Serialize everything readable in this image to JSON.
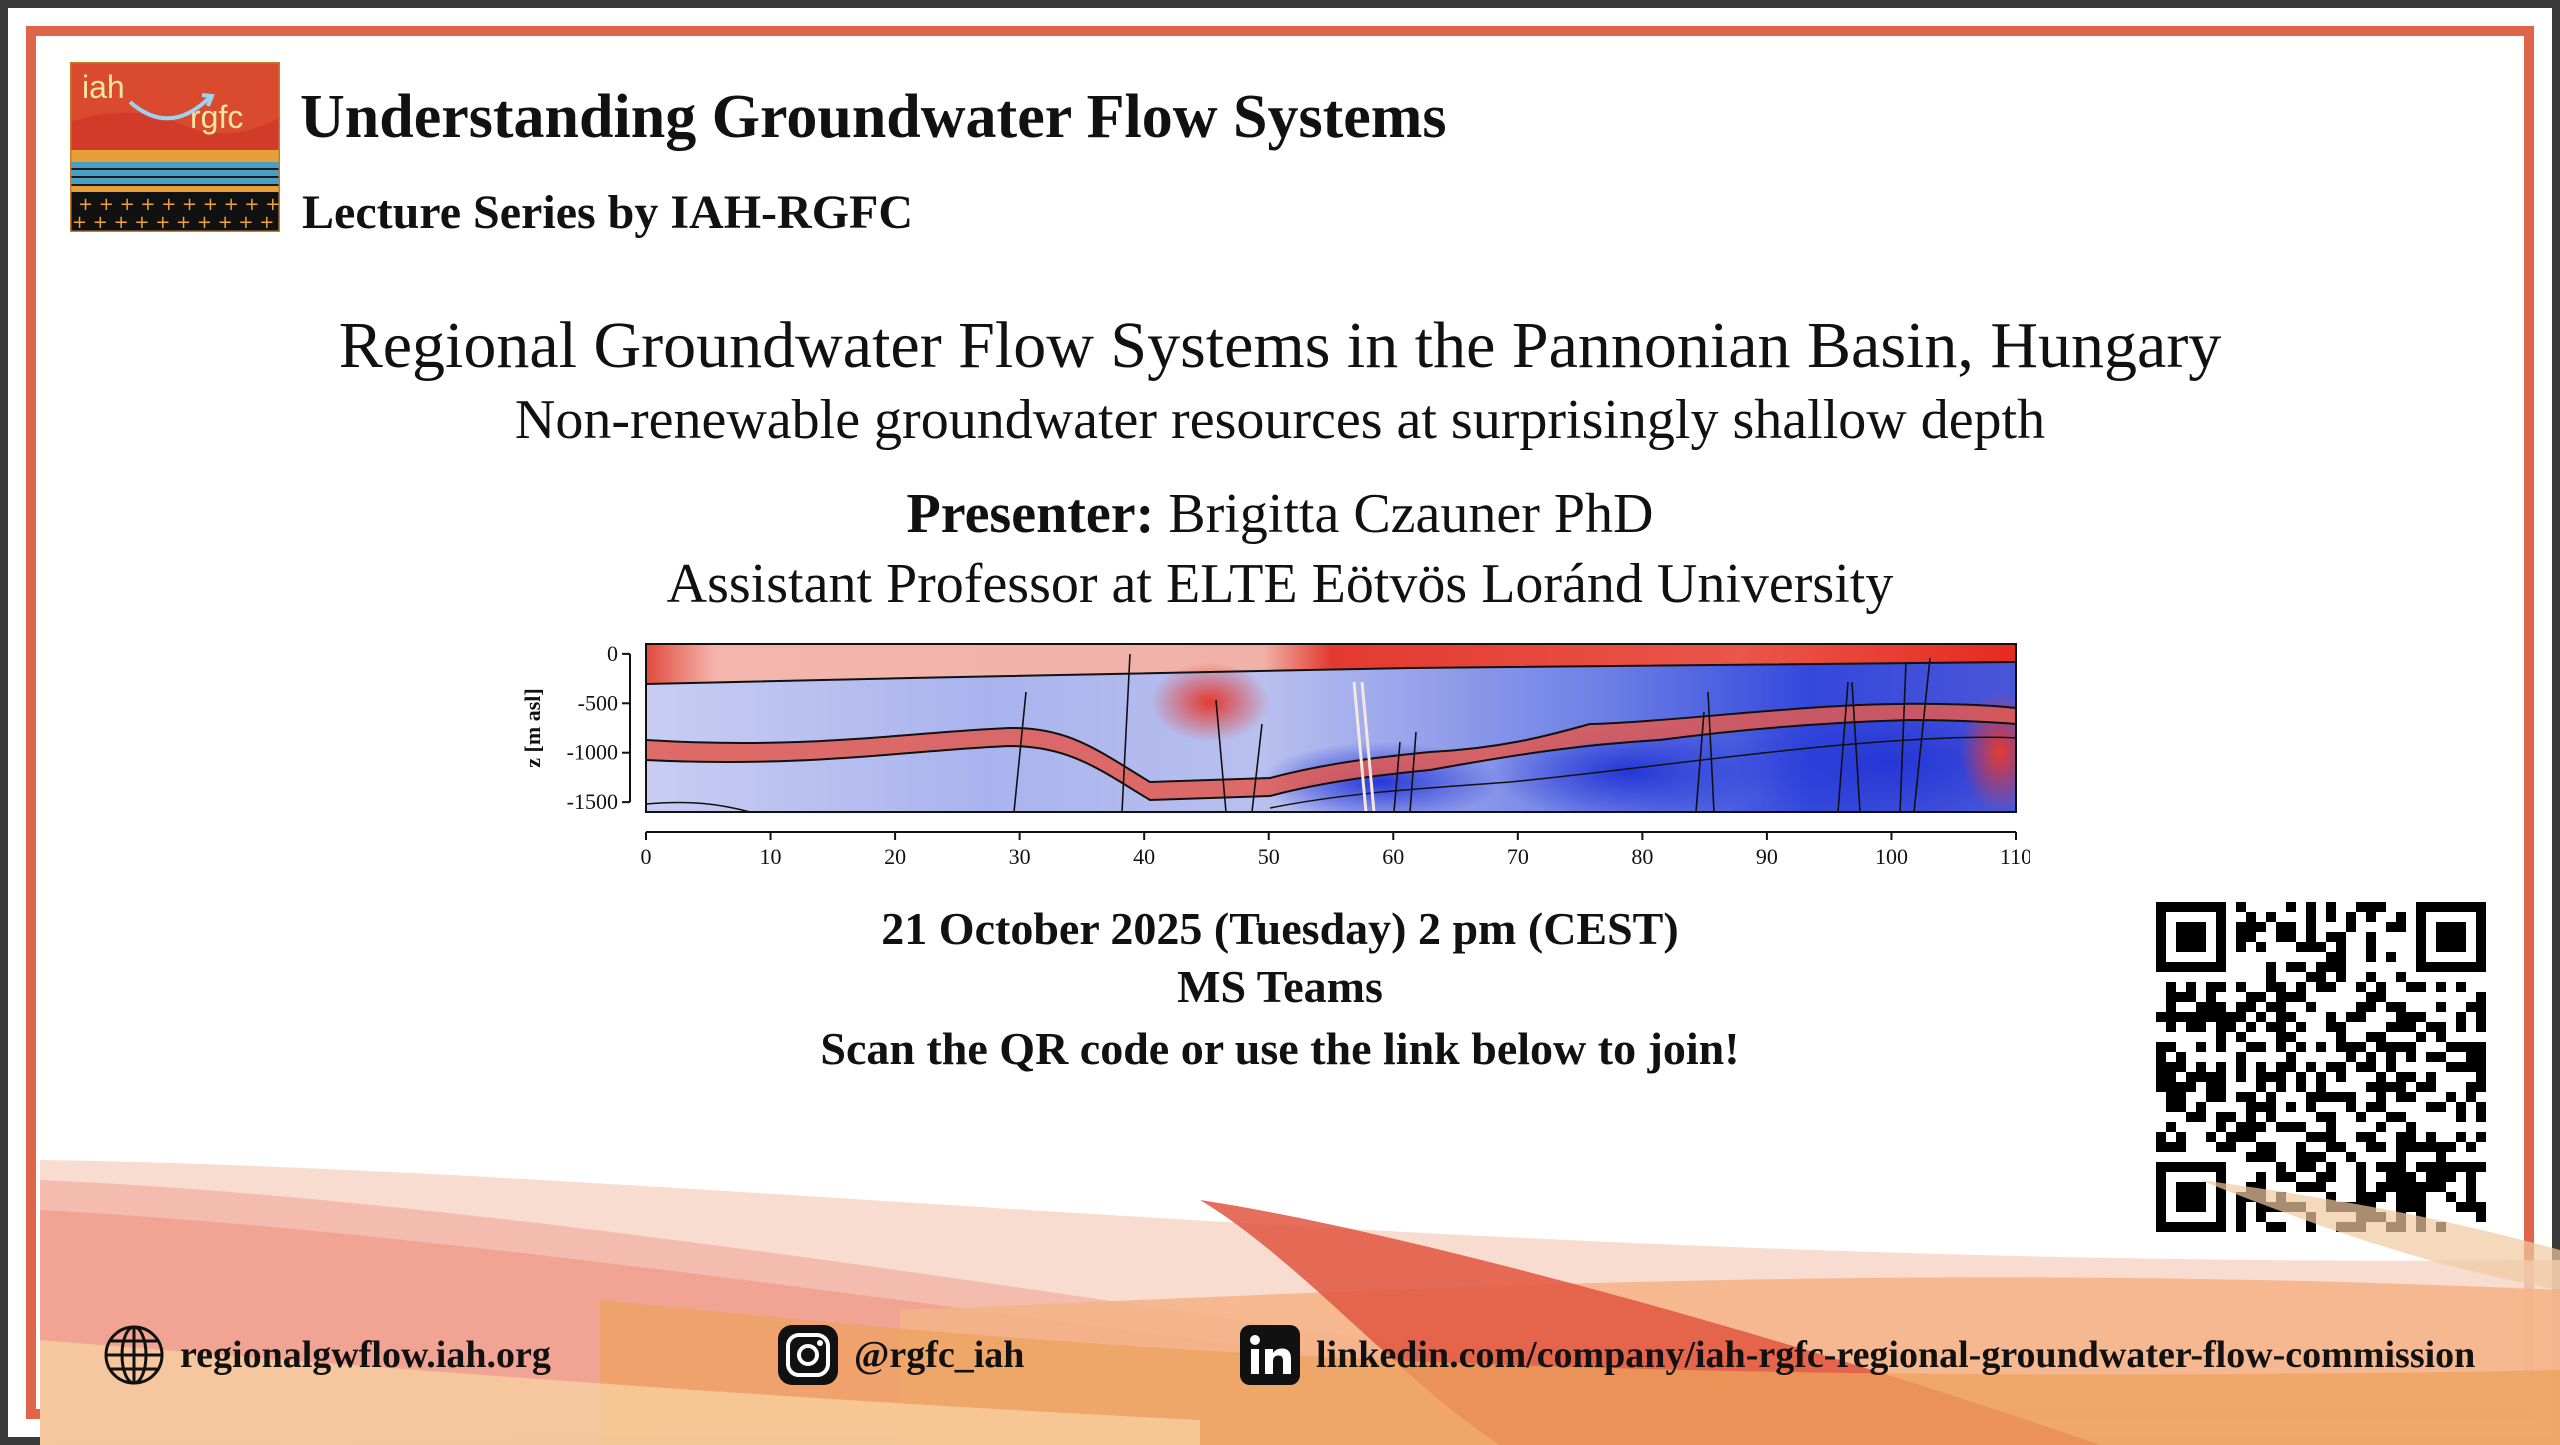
{
  "logo": {
    "text_left": "iah",
    "text_right": "rgfc"
  },
  "header": {
    "title": "Understanding Groundwater Flow Systems",
    "subtitle": "Lecture Series by IAH-RGFC"
  },
  "talk": {
    "title": "Regional Groundwater Flow Systems in the Pannonian Basin, Hungary",
    "subtitle": "Non-renewable groundwater resources at surprisingly shallow depth",
    "presenter_label": "Presenter:",
    "presenter_name": "Brigitta Czauner PhD",
    "affiliation": "Assistant Professor at ELTE Eötvös Loránd University"
  },
  "chart_data": {
    "type": "heatmap",
    "ylabel": "z [m asl]",
    "xlabel": "",
    "x_ticks": [
      0,
      10,
      20,
      30,
      40,
      50,
      60,
      70,
      80,
      90,
      100,
      110
    ],
    "y_ticks": [
      0,
      -500,
      -1000,
      -1500
    ],
    "xlim": [
      0,
      110
    ],
    "ylim": [
      -1600,
      100
    ],
    "colors": {
      "high": "#e8302a",
      "low": "#2b3fd9",
      "mid": "#e6e8f5"
    }
  },
  "event": {
    "date": "21 October 2025 (Tuesday) 2 pm (CEST)",
    "venue": "MS Teams",
    "cta": "Scan the QR code or use the link below to join!"
  },
  "footer": {
    "website": "regionalgwflow.iah.org",
    "instagram": "@rgfc_iah",
    "linkedin": "linkedin.com/company/iah-rgfc-regional-groundwater-flow-commission"
  },
  "icons": {
    "website": "globe-icon",
    "instagram": "instagram-icon",
    "linkedin": "linkedin-icon",
    "qr": "qr-code"
  },
  "colors": {
    "frame": "#e0654a",
    "outer_frame": "#3a3a3a",
    "accent": "#e0654a"
  }
}
